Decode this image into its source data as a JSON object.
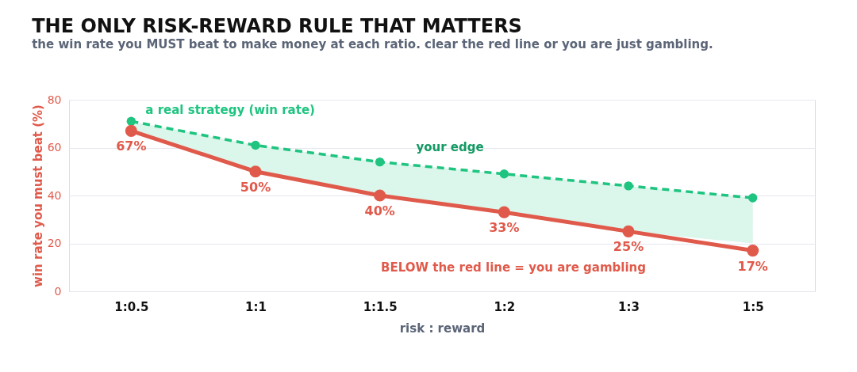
{
  "chart_data": {
    "type": "line",
    "title": "THE ONLY RISK-REWARD RULE THAT MATTERS",
    "subtitle": "the win rate you MUST beat to make money at each ratio. clear the red line or you are just gambling.",
    "xlabel": "risk : reward",
    "ylabel": "win rate you must beat  (%)",
    "categories": [
      "1:0.5",
      "1:1",
      "1:1.5",
      "1:2",
      "1:3",
      "1:5"
    ],
    "series": [
      {
        "name": "a real strategy (win rate)",
        "color": "#1ec47f",
        "values": [
          71,
          61,
          54,
          49,
          44,
          39
        ],
        "lower": [
          67,
          50,
          40,
          33,
          25,
          20
        ],
        "upper": [
          71,
          61,
          54,
          49,
          44,
          39
        ],
        "line_style": "dashed",
        "marker": "circle"
      },
      {
        "color": "#e05a4b",
        "values": [
          67,
          50,
          40,
          33,
          25,
          17
        ],
        "value_labels": [
          "67%",
          "50%",
          "40%",
          "33%",
          "25%",
          "17%"
        ],
        "line_style": "solid",
        "marker": "circle"
      }
    ],
    "annotations": [
      "your edge",
      "BELOW the red line = you are gambling"
    ],
    "ylim": [
      0,
      80
    ],
    "yticks": [
      0,
      20,
      40,
      60,
      80
    ],
    "grid": "y"
  }
}
